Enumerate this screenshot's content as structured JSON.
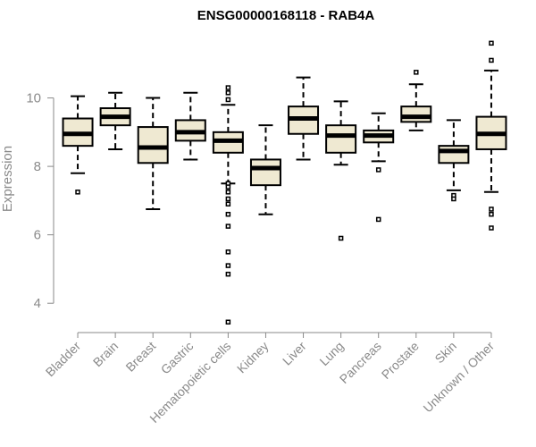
{
  "chart_data": {
    "type": "boxplot",
    "title": "ENSG00000168118 - RAB4A",
    "xlabel": "",
    "ylabel": "Expression",
    "ylim": [
      3.3,
      12.0
    ],
    "yticks": [
      4,
      6,
      8,
      10
    ],
    "grid": false,
    "box_fill": "#efe9d2",
    "categories": [
      "Bladder",
      "Brain",
      "Breast",
      "Gastric",
      "Hematopoietic cells",
      "Kidney",
      "Liver",
      "Lung",
      "Pancreas",
      "Prostate",
      "Skin",
      "Unknown / Other"
    ],
    "boxes": [
      {
        "whisker_low": 7.8,
        "q1": 8.6,
        "median": 8.95,
        "q3": 9.4,
        "whisker_high": 10.05,
        "outliers": [
          7.25
        ]
      },
      {
        "whisker_low": 8.5,
        "q1": 9.2,
        "median": 9.45,
        "q3": 9.7,
        "whisker_high": 10.15,
        "outliers": []
      },
      {
        "whisker_low": 6.75,
        "q1": 8.1,
        "median": 8.55,
        "q3": 9.15,
        "whisker_high": 10.0,
        "outliers": []
      },
      {
        "whisker_low": 8.2,
        "q1": 8.75,
        "median": 9.0,
        "q3": 9.35,
        "whisker_high": 10.15,
        "outliers": []
      },
      {
        "whisker_low": 7.5,
        "q1": 8.4,
        "median": 8.75,
        "q3": 9.0,
        "whisker_high": 9.8,
        "outliers": [
          10.3,
          10.15,
          9.95,
          7.5,
          7.4,
          7.25,
          7.05,
          6.9,
          6.6,
          6.25,
          5.5,
          5.1,
          4.85,
          3.45
        ]
      },
      {
        "whisker_low": 6.6,
        "q1": 7.45,
        "median": 7.95,
        "q3": 8.2,
        "whisker_high": 9.2,
        "outliers": []
      },
      {
        "whisker_low": 8.2,
        "q1": 8.95,
        "median": 9.4,
        "q3": 9.75,
        "whisker_high": 10.6,
        "outliers": []
      },
      {
        "whisker_low": 8.05,
        "q1": 8.4,
        "median": 8.9,
        "q3": 9.2,
        "whisker_high": 9.9,
        "outliers": [
          5.9
        ]
      },
      {
        "whisker_low": 8.15,
        "q1": 8.7,
        "median": 8.9,
        "q3": 9.05,
        "whisker_high": 9.55,
        "outliers": [
          7.9,
          6.45
        ]
      },
      {
        "whisker_low": 9.05,
        "q1": 9.3,
        "median": 9.45,
        "q3": 9.75,
        "whisker_high": 10.4,
        "outliers": [
          10.75
        ]
      },
      {
        "whisker_low": 7.3,
        "q1": 8.1,
        "median": 8.45,
        "q3": 8.6,
        "whisker_high": 9.35,
        "outliers": [
          7.15,
          7.05
        ]
      },
      {
        "whisker_low": 7.25,
        "q1": 8.5,
        "median": 8.95,
        "q3": 9.45,
        "whisker_high": 10.8,
        "outliers": [
          11.6,
          11.1,
          6.75,
          6.6,
          6.2
        ]
      }
    ]
  }
}
